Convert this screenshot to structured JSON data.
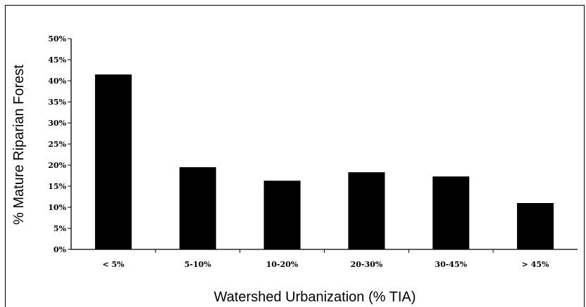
{
  "chart_data": {
    "type": "bar",
    "title": "",
    "xlabel": "Watershed Urbanization (% TIA)",
    "ylabel": "% Mature Riparian Forest",
    "categories": [
      "< 5%",
      "5-10%",
      "10-20%",
      "20-30%",
      "30-45%",
      "> 45%"
    ],
    "values": [
      41.5,
      19.5,
      16.3,
      18.3,
      17.3,
      11.0
    ],
    "ylim": [
      0,
      50
    ],
    "y_ticks": [
      "0%",
      "5%",
      "10%",
      "15%",
      "20%",
      "25%",
      "30%",
      "35%",
      "40%",
      "45%",
      "50%"
    ],
    "grid": false,
    "bar_color": "#000000",
    "legend": "none"
  }
}
